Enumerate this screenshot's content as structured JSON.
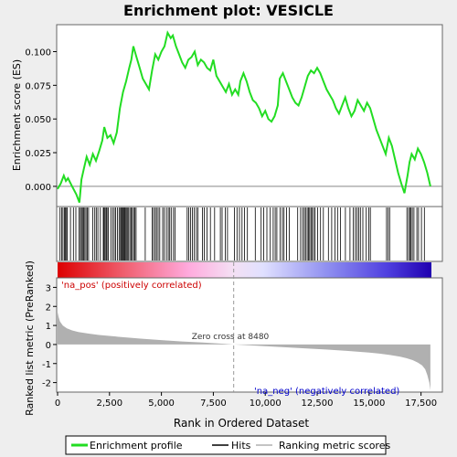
{
  "chart_data": {
    "type": "line",
    "title": "Enrichment plot: VESICLE",
    "top_panel": {
      "ylabel": "Enrichment score (ES)",
      "ylim": [
        -0.015,
        0.12
      ],
      "yticks": [
        0.0,
        0.025,
        0.05,
        0.075,
        0.1
      ],
      "ytick_labels": [
        "0.000",
        "0.025",
        "0.050",
        "0.075",
        "0.100"
      ],
      "grid": false,
      "line_color": "#22dd22",
      "series": [
        {
          "name": "Enrichment profile",
          "x": [
            0,
            150,
            300,
            400,
            500,
            700,
            900,
            1050,
            1150,
            1250,
            1400,
            1550,
            1700,
            1850,
            2000,
            2150,
            2250,
            2400,
            2550,
            2700,
            2850,
            3000,
            3150,
            3300,
            3450,
            3550,
            3650,
            3800,
            3950,
            4100,
            4250,
            4400,
            4550,
            4700,
            4850,
            5000,
            5150,
            5300,
            5450,
            5550,
            5700,
            5850,
            6000,
            6150,
            6300,
            6450,
            6600,
            6750,
            6900,
            7050,
            7200,
            7350,
            7500,
            7650,
            7800,
            7950,
            8100,
            8250,
            8400,
            8550,
            8700,
            8800,
            8950,
            9100,
            9250,
            9400,
            9550,
            9700,
            9850,
            10000,
            10150,
            10300,
            10450,
            10600,
            10700,
            10850,
            11000,
            11150,
            11300,
            11450,
            11600,
            11750,
            11900,
            12050,
            12200,
            12350,
            12500,
            12650,
            12800,
            12950,
            13100,
            13250,
            13400,
            13550,
            13700,
            13850,
            14000,
            14150,
            14300,
            14450,
            14600,
            14750,
            14900,
            15050,
            15200,
            15350,
            15500,
            15650,
            15800,
            15950,
            16100,
            16250,
            16400,
            16550,
            16700,
            16850,
            16950,
            17050,
            17200,
            17350,
            17500,
            17650,
            17800,
            17950
          ],
          "y": [
            -0.002,
            0.002,
            0.008,
            0.004,
            0.006,
            0.0,
            -0.006,
            -0.012,
            0.005,
            0.012,
            0.022,
            0.016,
            0.024,
            0.019,
            0.026,
            0.034,
            0.044,
            0.036,
            0.038,
            0.032,
            0.04,
            0.058,
            0.07,
            0.078,
            0.088,
            0.094,
            0.104,
            0.096,
            0.088,
            0.08,
            0.076,
            0.072,
            0.086,
            0.098,
            0.094,
            0.1,
            0.104,
            0.114,
            0.11,
            0.112,
            0.104,
            0.098,
            0.092,
            0.088,
            0.094,
            0.096,
            0.1,
            0.09,
            0.094,
            0.092,
            0.088,
            0.086,
            0.094,
            0.082,
            0.078,
            0.074,
            0.07,
            0.076,
            0.068,
            0.072,
            0.068,
            0.078,
            0.084,
            0.078,
            0.07,
            0.064,
            0.062,
            0.058,
            0.052,
            0.056,
            0.05,
            0.048,
            0.052,
            0.06,
            0.08,
            0.084,
            0.078,
            0.072,
            0.066,
            0.062,
            0.06,
            0.066,
            0.074,
            0.082,
            0.086,
            0.084,
            0.088,
            0.084,
            0.078,
            0.072,
            0.068,
            0.064,
            0.058,
            0.054,
            0.06,
            0.066,
            0.058,
            0.052,
            0.056,
            0.064,
            0.06,
            0.056,
            0.062,
            0.058,
            0.05,
            0.042,
            0.036,
            0.03,
            0.024,
            0.036,
            0.03,
            0.02,
            0.01,
            0.002,
            -0.005,
            0.008,
            0.018,
            0.024,
            0.02,
            0.028,
            0.024,
            0.018,
            0.01,
            0.0
          ]
        }
      ]
    },
    "hits_panel": {
      "name": "Hits",
      "hit_ranks": [
        120,
        200,
        260,
        330,
        380,
        430,
        460,
        620,
        760,
        880,
        1030,
        1100,
        1150,
        1200,
        1260,
        1310,
        1370,
        1430,
        1490,
        1700,
        1790,
        1860,
        1940,
        2060,
        2200,
        2240,
        2290,
        2340,
        2380,
        2440,
        2560,
        2650,
        2730,
        2800,
        2880,
        2960,
        3030,
        3070,
        3110,
        3140,
        3180,
        3220,
        3260,
        3310,
        3360,
        3420,
        3480,
        3540,
        3600,
        3660,
        3720,
        3780,
        4220,
        4560,
        4620,
        4700,
        4760,
        4840,
        4920,
        5060,
        5140,
        5240,
        5330,
        5400,
        5470,
        5580,
        5660,
        6240,
        6320,
        6400,
        6490,
        6580,
        6680,
        6760,
        6980,
        7060,
        7200,
        7360,
        7560,
        7840,
        7920,
        8080,
        8180,
        8520,
        8640,
        8760,
        8880,
        9000,
        9140,
        9520,
        9800,
        9920,
        10080,
        10240,
        10380,
        10480,
        10560,
        10720,
        10820,
        10900,
        11030,
        11160,
        11560,
        11700,
        11800,
        11880,
        11940,
        12020,
        12080,
        12140,
        12200,
        12260,
        12330,
        12400,
        12520,
        12660,
        12800,
        13040,
        13200,
        13360,
        13480,
        13620,
        13860,
        14080,
        14240,
        14340,
        14420,
        14500,
        14580,
        14700,
        14860,
        14980,
        15060,
        15840,
        15920,
        15990,
        16820,
        16900,
        16960,
        17020,
        17080,
        17160,
        17300,
        17380,
        17520,
        17660
      ]
    },
    "metric_panel": {
      "ylabel": "Ranked list metric (PreRanked)",
      "xlabel": "Rank in Ordered Dataset",
      "ylim": [
        -2.5,
        3.5
      ],
      "yticks": [
        -2,
        -1,
        0,
        1,
        2,
        3
      ],
      "ytick_labels": [
        "-2",
        "-1",
        "0",
        "1",
        "2",
        "3"
      ],
      "xlim": [
        0,
        18000
      ],
      "xticks": [
        0,
        2500,
        5000,
        7500,
        10000,
        12500,
        15000,
        17500
      ],
      "xtick_labels": [
        "0",
        "2,500",
        "5,000",
        "7,500",
        "10,000",
        "12,500",
        "15,000",
        "17,500"
      ],
      "metric_x": [
        0,
        50,
        120,
        250,
        450,
        700,
        1000,
        1500,
        2000,
        3000,
        4000,
        5000,
        6000,
        7000,
        8000,
        8480,
        9000,
        10000,
        11000,
        12000,
        13000,
        14000,
        15000,
        15500,
        16000,
        16500,
        16800,
        17100,
        17350,
        17550,
        17700,
        17800,
        17900,
        17950
      ],
      "metric_y": [
        1.7,
        1.45,
        1.2,
        1.0,
        0.85,
        0.74,
        0.66,
        0.57,
        0.5,
        0.4,
        0.31,
        0.23,
        0.16,
        0.1,
        0.04,
        0.0,
        -0.03,
        -0.09,
        -0.15,
        -0.21,
        -0.27,
        -0.34,
        -0.42,
        -0.48,
        -0.55,
        -0.64,
        -0.72,
        -0.82,
        -0.95,
        -1.1,
        -1.3,
        -1.6,
        -2.0,
        -2.4
      ],
      "zero_cross_rank": 8480,
      "zero_cross_label": "Zero cross at 8480",
      "pos_label": "'na_pos' (positively correlated)",
      "neg_label": "'na_neg' (negatively correlated)"
    },
    "legend": {
      "placement": "bottom",
      "entries": [
        "Enrichment profile",
        "Hits",
        "Ranking metric scores"
      ]
    },
    "colors": {
      "es_line": "#22dd22",
      "metric_fill": "#b0b0b0",
      "pos_text": "#cc0000",
      "neg_text": "#0000cc",
      "frame": "#666666",
      "page_bg": "#eeeeee"
    }
  }
}
